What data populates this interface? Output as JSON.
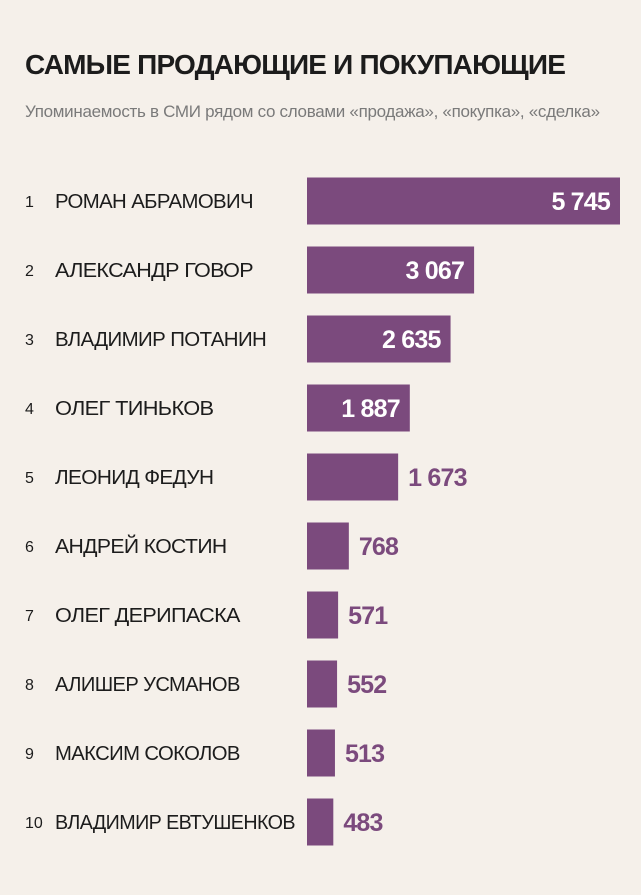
{
  "chart_data": {
    "type": "bar",
    "orientation": "horizontal",
    "title": "САМЫЕ ПРОДАЮЩИЕ И ПОКУПАЮЩИЕ",
    "subtitle": "Упоминаемость в СМИ рядом со словами «продажа», «покупка», «сделка»",
    "ranks": [
      "1",
      "2",
      "3",
      "4",
      "5",
      "6",
      "7",
      "8",
      "9",
      "10"
    ],
    "categories": [
      "РОМАН АБРАМОВИЧ",
      "АЛЕКСАНДР ГОВОР",
      "ВЛАДИМИР ПОТАНИН",
      "ОЛЕГ ТИНЬКОВ",
      "ЛЕОНИД ФЕДУН",
      "АНДРЕЙ КОСТИН",
      "ОЛЕГ ДЕРИПАСКА",
      "АЛИШЕР УСМАНОВ",
      "МАКСИМ СОКОЛОВ",
      "ВЛАДИМИР ЕВТУШЕНКОВ"
    ],
    "values": [
      5745,
      3067,
      2635,
      1887,
      1673,
      768,
      571,
      552,
      513,
      483
    ],
    "value_labels": [
      "5 745",
      "3 067",
      "2 635",
      "1 887",
      "1 673",
      "768",
      "571",
      "552",
      "513",
      "483"
    ],
    "bar_color": "#7b4a7d",
    "label_inside_color": "#ffffff",
    "label_outside_color": "#7b4a7d"
  }
}
